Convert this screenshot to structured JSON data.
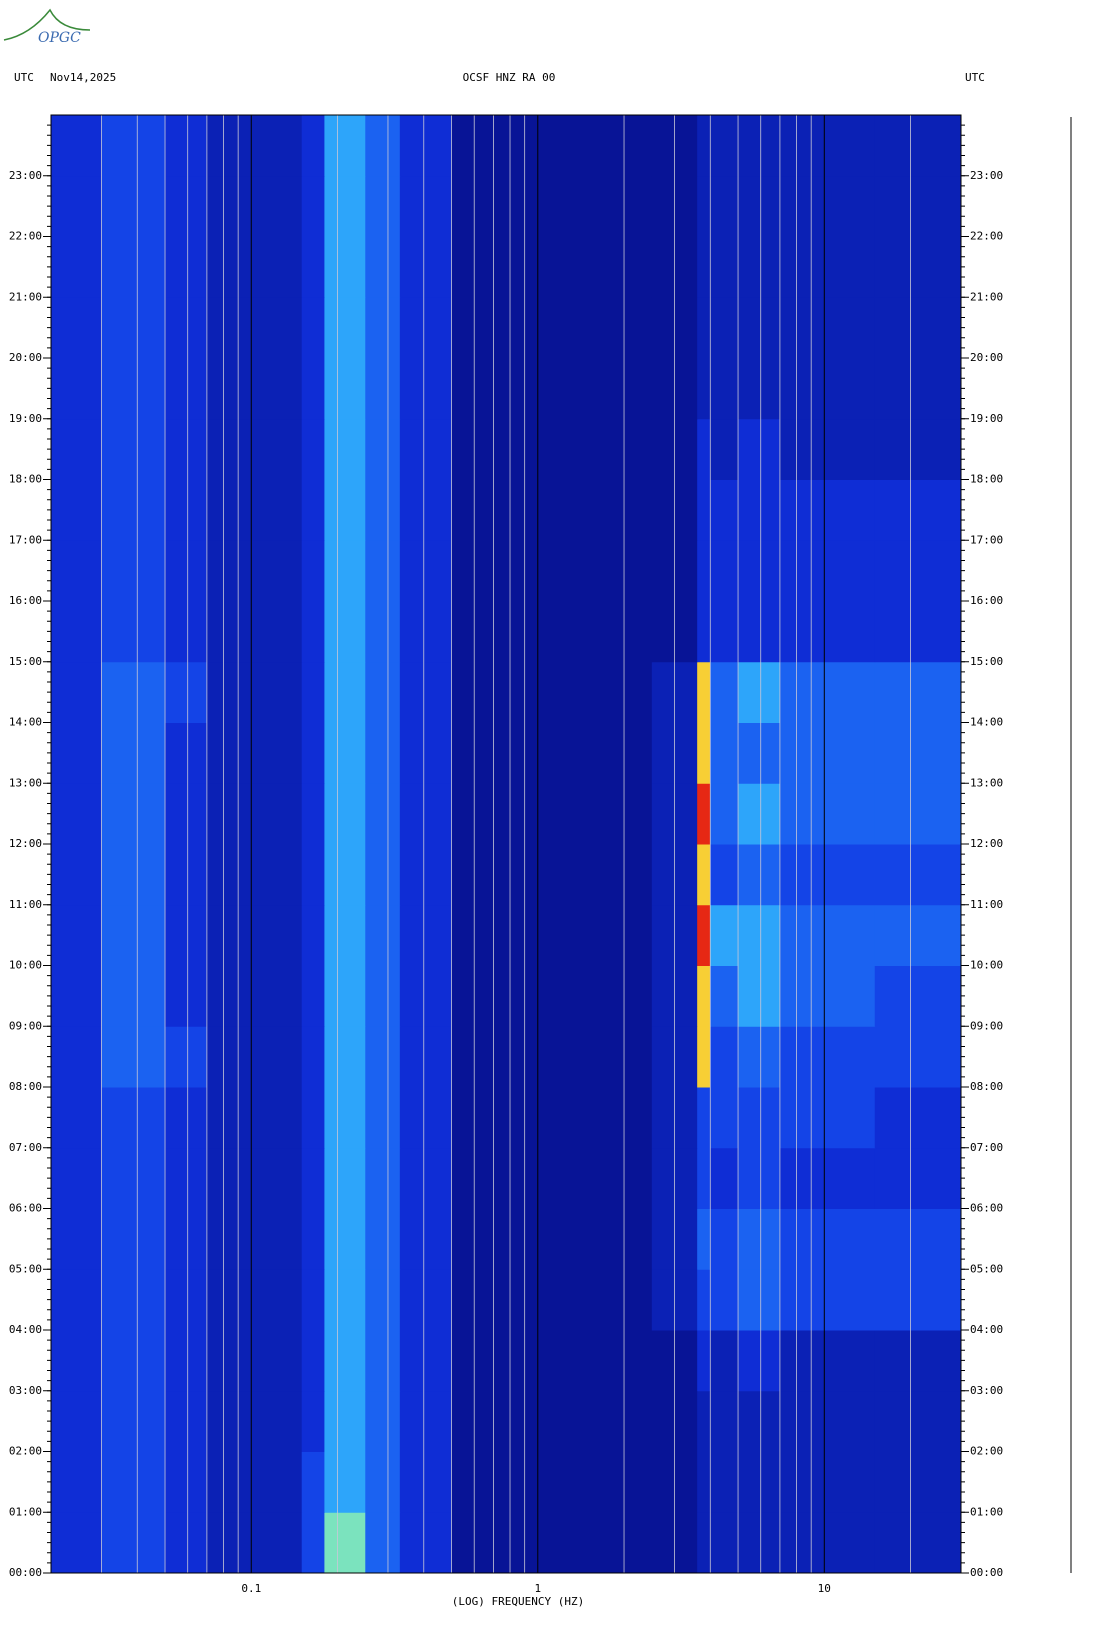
{
  "chart_data": {
    "type": "spectrogram",
    "logo": "OPGC",
    "title": "OCSF HNZ RA 00",
    "left_label": "UTC",
    "date": "Nov14,2025",
    "right_label": "UTC",
    "xlabel": "(LOG) FREQUENCY (HZ)",
    "xlog": true,
    "xlim": [
      0.02,
      30
    ],
    "xticks": [
      0.1,
      1,
      10
    ],
    "ylim": [
      0,
      24
    ],
    "yticks": [
      {
        "value": 0,
        "label": "00:00"
      },
      {
        "value": 1,
        "label": "01:00"
      },
      {
        "value": 2,
        "label": "02:00"
      },
      {
        "value": 3,
        "label": "03:00"
      },
      {
        "value": 4,
        "label": "04:00"
      },
      {
        "value": 5,
        "label": "05:00"
      },
      {
        "value": 6,
        "label": "06:00"
      },
      {
        "value": 7,
        "label": "07:00"
      },
      {
        "value": 8,
        "label": "08:00"
      },
      {
        "value": 9,
        "label": "09:00"
      },
      {
        "value": 10,
        "label": "10:00"
      },
      {
        "value": 11,
        "label": "11:00"
      },
      {
        "value": 12,
        "label": "12:00"
      },
      {
        "value": 13,
        "label": "13:00"
      },
      {
        "value": 14,
        "label": "14:00"
      },
      {
        "value": 15,
        "label": "15:00"
      },
      {
        "value": 16,
        "label": "16:00"
      },
      {
        "value": 17,
        "label": "17:00"
      },
      {
        "value": 18,
        "label": "18:00"
      },
      {
        "value": 19,
        "label": "19:00"
      },
      {
        "value": 20,
        "label": "20:00"
      },
      {
        "value": 21,
        "label": "21:00"
      },
      {
        "value": 22,
        "label": "22:00"
      },
      {
        "value": 23,
        "label": "23:00"
      }
    ],
    "xbins": [
      0.02,
      0.03,
      0.05,
      0.07,
      0.1,
      0.15,
      0.18,
      0.25,
      0.33,
      0.5,
      1,
      2.5,
      3.6,
      4,
      5,
      7,
      15,
      30
    ],
    "ybins": [
      0,
      1,
      2,
      3,
      4,
      5,
      6,
      7,
      8,
      9,
      10,
      11,
      12,
      13,
      14,
      15,
      16,
      17,
      18,
      19,
      20,
      21,
      22,
      23,
      24
    ],
    "z": [
      [
        3,
        4,
        3,
        2,
        2,
        4,
        7,
        5,
        3,
        1,
        1,
        1,
        2,
        2,
        2,
        2,
        2
      ],
      [
        3,
        4,
        3,
        2,
        2,
        4,
        6,
        5,
        3,
        1,
        1,
        1,
        2,
        2,
        2,
        2,
        2
      ],
      [
        3,
        4,
        3,
        2,
        2,
        3,
        6,
        5,
        3,
        1,
        1,
        1,
        2,
        2,
        2,
        2,
        2
      ],
      [
        3,
        4,
        3,
        2,
        2,
        3,
        6,
        5,
        3,
        1,
        1,
        1,
        3,
        2,
        3,
        2,
        2
      ],
      [
        3,
        4,
        3,
        2,
        2,
        3,
        6,
        5,
        3,
        1,
        1,
        2,
        4,
        4,
        5,
        4,
        4
      ],
      [
        3,
        4,
        3,
        2,
        2,
        3,
        6,
        5,
        3,
        1,
        1,
        2,
        5,
        4,
        5,
        4,
        4
      ],
      [
        3,
        4,
        3,
        2,
        2,
        3,
        6,
        5,
        3,
        1,
        1,
        2,
        4,
        3,
        4,
        3,
        3
      ],
      [
        3,
        4,
        3,
        2,
        2,
        3,
        6,
        5,
        3,
        1,
        1,
        2,
        4,
        4,
        4,
        4,
        3
      ],
      [
        3,
        5,
        4,
        2,
        2,
        3,
        6,
        5,
        3,
        1,
        1,
        2,
        8,
        4,
        5,
        4,
        4
      ],
      [
        3,
        5,
        3,
        2,
        2,
        3,
        6,
        5,
        3,
        1,
        1,
        2,
        8,
        5,
        6,
        5,
        4
      ],
      [
        3,
        5,
        3,
        2,
        2,
        3,
        6,
        5,
        3,
        1,
        1,
        2,
        9,
        6,
        6,
        5,
        5
      ],
      [
        3,
        5,
        3,
        2,
        2,
        3,
        6,
        5,
        3,
        1,
        1,
        2,
        8,
        4,
        5,
        4,
        4
      ],
      [
        3,
        5,
        3,
        2,
        2,
        3,
        6,
        5,
        3,
        1,
        1,
        2,
        9,
        5,
        6,
        5,
        5
      ],
      [
        3,
        5,
        3,
        2,
        2,
        3,
        6,
        5,
        3,
        1,
        1,
        2,
        8,
        5,
        5,
        5,
        5
      ],
      [
        3,
        5,
        4,
        2,
        2,
        3,
        6,
        5,
        3,
        1,
        1,
        2,
        8,
        5,
        6,
        5,
        5
      ],
      [
        3,
        4,
        3,
        2,
        2,
        3,
        6,
        5,
        3,
        1,
        1,
        1,
        3,
        3,
        3,
        3,
        3
      ],
      [
        3,
        4,
        3,
        2,
        2,
        3,
        6,
        5,
        3,
        1,
        1,
        1,
        3,
        3,
        3,
        3,
        3
      ],
      [
        3,
        4,
        3,
        2,
        2,
        3,
        6,
        5,
        3,
        1,
        1,
        1,
        3,
        3,
        3,
        3,
        3
      ],
      [
        3,
        4,
        3,
        2,
        2,
        3,
        6,
        5,
        3,
        1,
        1,
        1,
        3,
        2,
        3,
        2,
        2
      ],
      [
        3,
        4,
        3,
        2,
        2,
        3,
        6,
        5,
        3,
        1,
        1,
        1,
        2,
        2,
        2,
        2,
        2
      ],
      [
        3,
        4,
        3,
        2,
        2,
        3,
        6,
        5,
        3,
        1,
        1,
        1,
        2,
        2,
        2,
        2,
        2
      ],
      [
        3,
        4,
        3,
        2,
        2,
        3,
        6,
        5,
        3,
        1,
        1,
        1,
        2,
        2,
        2,
        2,
        2
      ],
      [
        3,
        4,
        3,
        2,
        2,
        3,
        6,
        5,
        3,
        1,
        1,
        1,
        2,
        2,
        2,
        2,
        2
      ],
      [
        3,
        4,
        3,
        2,
        2,
        3,
        6,
        5,
        3,
        1,
        1,
        1,
        2,
        2,
        2,
        2,
        2
      ]
    ]
  }
}
